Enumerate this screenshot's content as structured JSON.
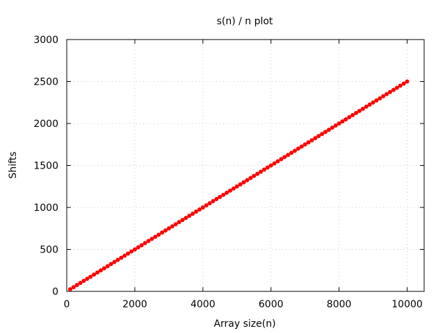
{
  "chart_data": {
    "type": "scatter",
    "title": "s(n) / n plot",
    "xlabel": "Array size(n)",
    "ylabel": "Shifts",
    "xlim": [
      0,
      10500
    ],
    "ylim": [
      0,
      3000
    ],
    "x_ticks": [
      0,
      2000,
      4000,
      6000,
      8000,
      10000
    ],
    "y_ticks": [
      0,
      500,
      1000,
      1500,
      2000,
      2500,
      3000
    ],
    "grid": true,
    "legend": "none",
    "series": [
      {
        "color": "#ff0000",
        "marker": "filled-circle",
        "x_start": 100,
        "x_end": 10000,
        "x_step": 100,
        "slope": 0.25,
        "intercept": 0
      }
    ]
  }
}
